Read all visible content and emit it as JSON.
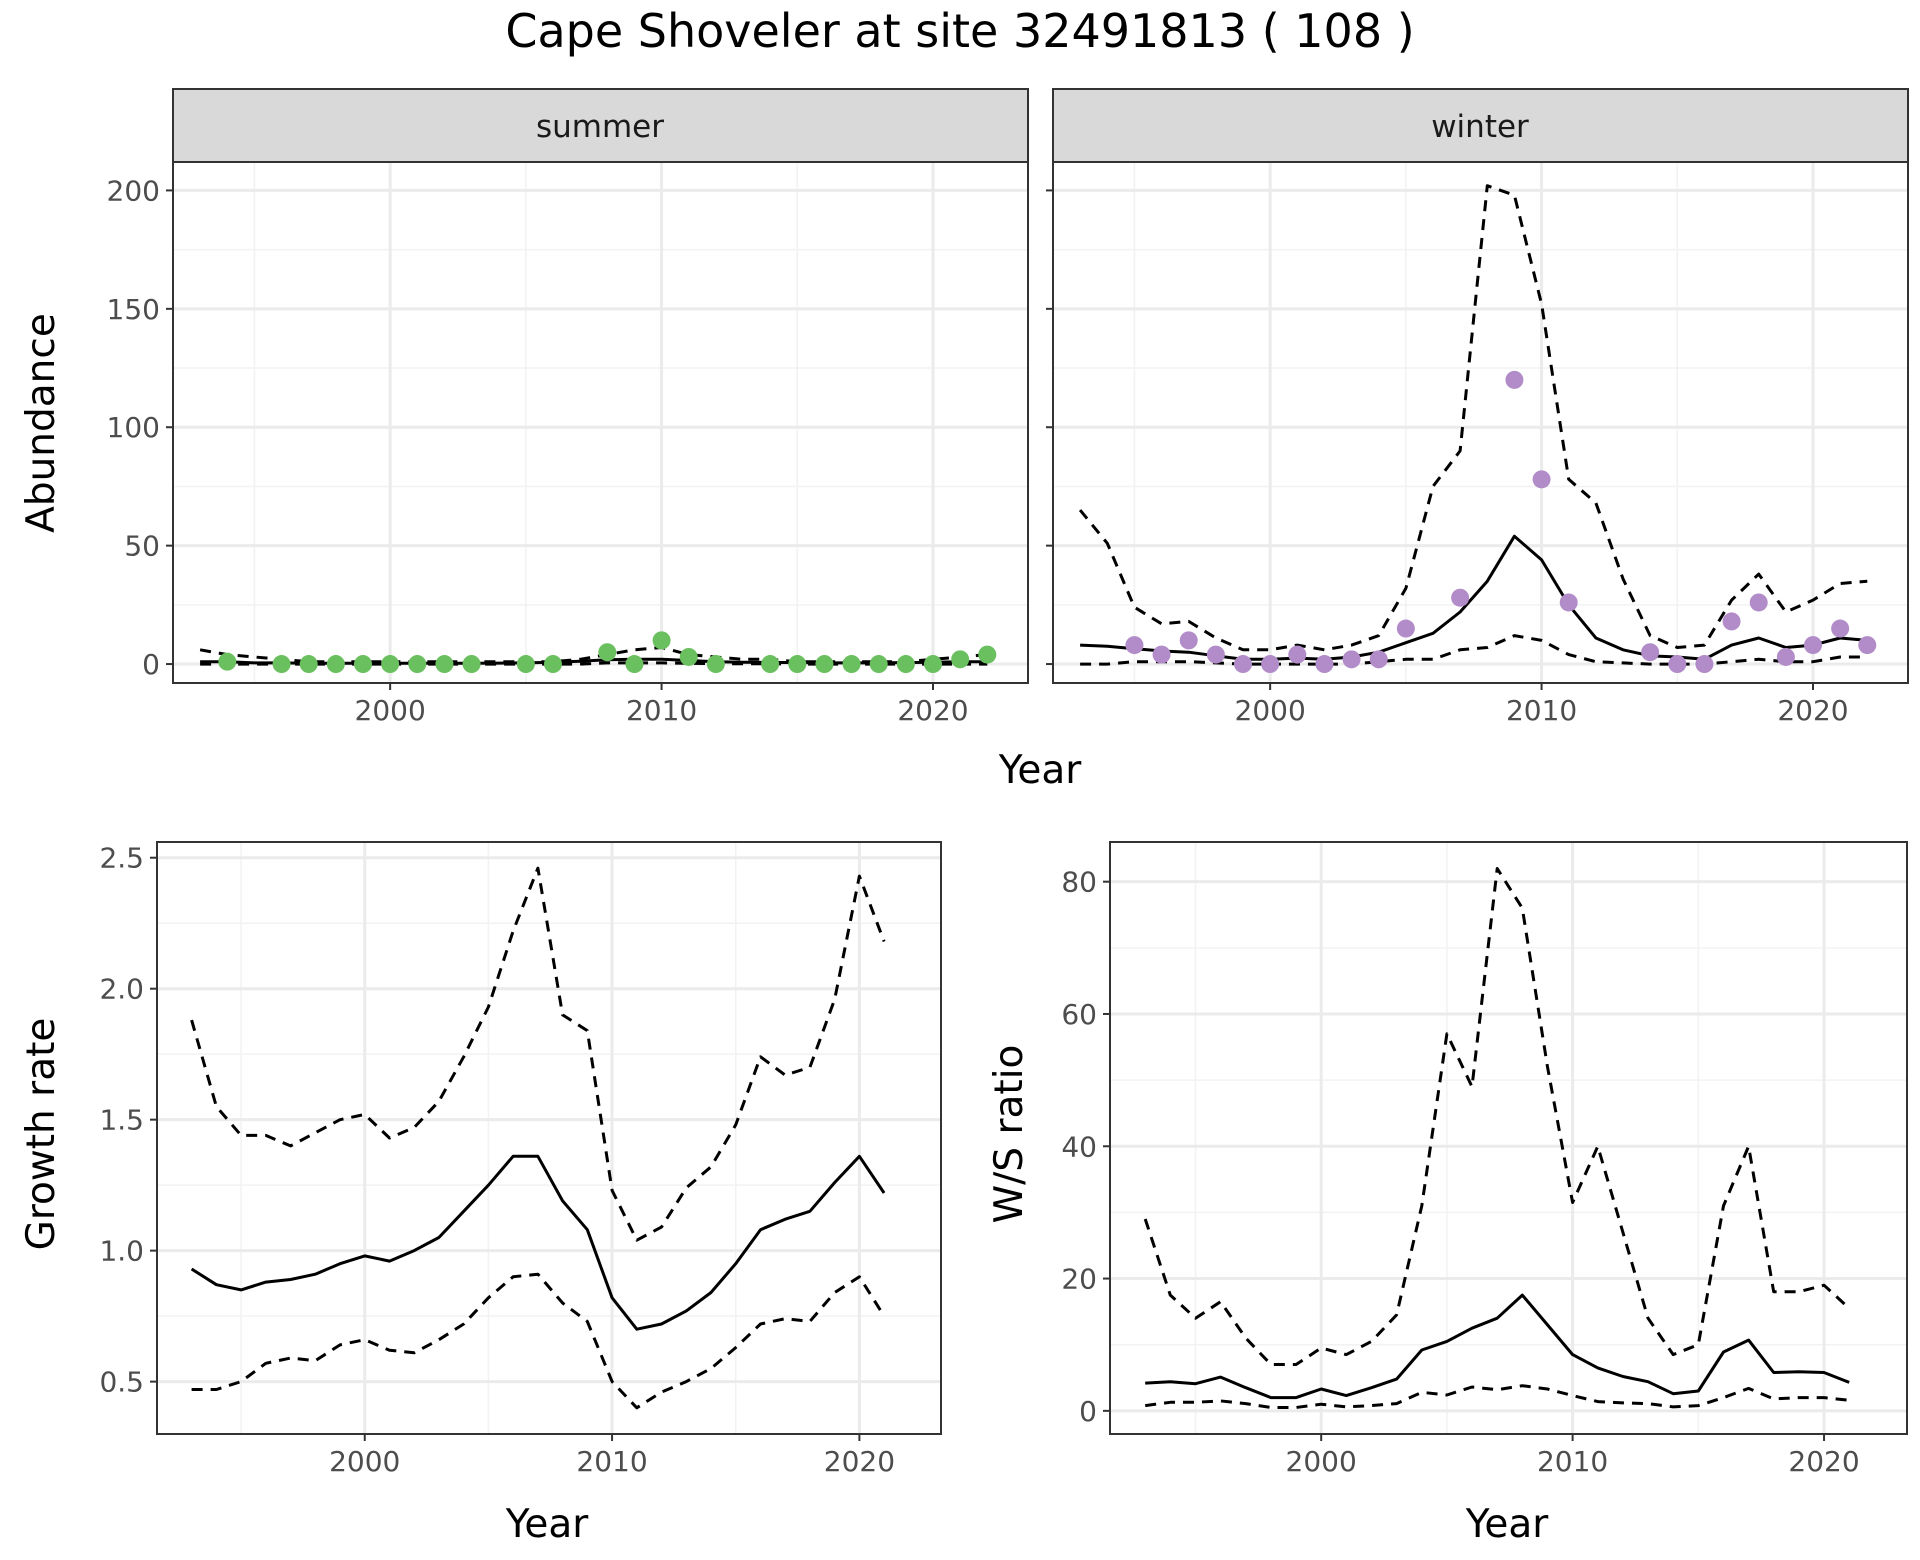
{
  "figure": {
    "title": "Cape Shoveler at site 32491813 ( 108 )"
  },
  "chart_data": [
    {
      "id": "summer",
      "type": "line",
      "panel_label": "summer",
      "xlabel": "Year",
      "ylabel": "Abundance",
      "xlim": [
        1992,
        2023.5
      ],
      "ylim": [
        -8,
        212
      ],
      "xticks": [
        2000,
        2010,
        2020
      ],
      "yticks": [
        0,
        50,
        100,
        150,
        200
      ],
      "grid": true,
      "point_color": "#6abf5e",
      "series": [
        {
          "role": "upper",
          "style": "dashed",
          "x": [
            1993,
            1994,
            1995,
            1996,
            1997,
            1998,
            1999,
            2000,
            2001,
            2002,
            2003,
            2004,
            2005,
            2006,
            2007,
            2008,
            2009,
            2010,
            2011,
            2012,
            2013,
            2014,
            2015,
            2016,
            2017,
            2018,
            2019,
            2020,
            2021,
            2022
          ],
          "y": [
            6,
            4,
            3,
            2,
            1,
            1,
            1,
            1,
            1,
            1,
            1,
            1,
            1,
            1,
            2,
            4,
            6,
            7,
            4,
            3,
            2,
            2,
            1,
            1,
            1,
            1,
            1,
            2,
            3,
            4
          ]
        },
        {
          "role": "fitted",
          "style": "solid",
          "x": [
            1993,
            1994,
            1995,
            1996,
            1997,
            1998,
            1999,
            2000,
            2001,
            2002,
            2003,
            2004,
            2005,
            2006,
            2007,
            2008,
            2009,
            2010,
            2011,
            2012,
            2013,
            2014,
            2015,
            2016,
            2017,
            2018,
            2019,
            2020,
            2021,
            2022
          ],
          "y": [
            1,
            1,
            0.5,
            0.5,
            0.3,
            0.3,
            0.3,
            0.3,
            0.3,
            0.3,
            0.3,
            0.4,
            0.5,
            0.8,
            1.2,
            1.8,
            2,
            2,
            1.5,
            1,
            0.8,
            0.7,
            0.6,
            0.5,
            0.5,
            0.5,
            0.6,
            0.8,
            1,
            1
          ]
        },
        {
          "role": "lower",
          "style": "dashed",
          "x": [
            1993,
            1994,
            1995,
            1996,
            1997,
            1998,
            1999,
            2000,
            2001,
            2002,
            2003,
            2004,
            2005,
            2006,
            2007,
            2008,
            2009,
            2010,
            2011,
            2012,
            2013,
            2014,
            2015,
            2016,
            2017,
            2018,
            2019,
            2020,
            2021,
            2022
          ],
          "y": [
            0,
            0,
            0,
            0,
            0,
            0,
            0,
            0,
            0,
            0,
            0,
            0,
            0,
            0,
            0,
            0.5,
            0.5,
            0.5,
            0.3,
            0.2,
            0.1,
            0.1,
            0,
            0,
            0,
            0,
            0,
            0,
            0,
            0
          ]
        }
      ],
      "points": {
        "x": [
          1994,
          1996,
          1997,
          1998,
          1999,
          2000,
          2001,
          2002,
          2003,
          2005,
          2006,
          2008,
          2009,
          2010,
          2011,
          2012,
          2014,
          2015,
          2016,
          2017,
          2018,
          2019,
          2020,
          2021,
          2022
        ],
        "y": [
          1,
          0,
          0,
          0,
          0,
          0,
          0,
          0,
          0,
          0,
          0,
          5,
          0,
          10,
          3,
          0,
          0,
          0,
          0,
          0,
          0,
          0,
          0,
          2,
          4
        ]
      }
    },
    {
      "id": "winter",
      "type": "line",
      "panel_label": "winter",
      "xlabel": "Year",
      "ylabel": "Abundance",
      "xlim": [
        1992,
        2023.5
      ],
      "ylim": [
        -8,
        212
      ],
      "xticks": [
        2000,
        2010,
        2020
      ],
      "yticks": [
        0,
        50,
        100,
        150,
        200
      ],
      "grid": true,
      "point_color": "#b28cc8",
      "series": [
        {
          "role": "upper",
          "style": "dashed",
          "x": [
            1993,
            1994,
            1995,
            1996,
            1997,
            1998,
            1999,
            2000,
            2001,
            2002,
            2003,
            2004,
            2005,
            2006,
            2007,
            2008,
            2009,
            2010,
            2011,
            2012,
            2013,
            2014,
            2015,
            2016,
            2017,
            2018,
            2019,
            2020,
            2021,
            2022
          ],
          "y": [
            65,
            51,
            24,
            17,
            18,
            11,
            6,
            6,
            8,
            6,
            8,
            12,
            32,
            75,
            90,
            202,
            198,
            152,
            78,
            68,
            36,
            12,
            7,
            8,
            27,
            38,
            22,
            27,
            34,
            35
          ]
        },
        {
          "role": "fitted",
          "style": "solid",
          "x": [
            1993,
            1994,
            1995,
            1996,
            1997,
            1998,
            1999,
            2000,
            2001,
            2002,
            2003,
            2004,
            2005,
            2006,
            2007,
            2008,
            2009,
            2010,
            2011,
            2012,
            2013,
            2014,
            2015,
            2016,
            2017,
            2018,
            2019,
            2020,
            2021,
            2022
          ],
          "y": [
            8,
            7.5,
            6.5,
            5.5,
            5,
            3.5,
            2,
            2,
            2.5,
            2,
            3,
            5,
            9,
            13,
            22,
            35,
            54,
            44,
            25,
            11,
            6,
            3.5,
            3,
            2,
            8,
            11,
            7,
            8,
            11,
            10
          ]
        },
        {
          "role": "lower",
          "style": "dashed",
          "x": [
            1993,
            1994,
            1995,
            1996,
            1997,
            1998,
            1999,
            2000,
            2001,
            2002,
            2003,
            2004,
            2005,
            2006,
            2007,
            2008,
            2009,
            2010,
            2011,
            2012,
            2013,
            2014,
            2015,
            2016,
            2017,
            2018,
            2019,
            2020,
            2021,
            2022
          ],
          "y": [
            0,
            0,
            1,
            1,
            1,
            0.5,
            0,
            0,
            0,
            0,
            0,
            1,
            2,
            2,
            6,
            7,
            12,
            10,
            4,
            1,
            0.5,
            0,
            0,
            0,
            1,
            2,
            1,
            1,
            3,
            3
          ]
        }
      ],
      "points": {
        "x": [
          1995,
          1996,
          1997,
          1998,
          1999,
          2000,
          2001,
          2002,
          2003,
          2004,
          2005,
          2007,
          2009,
          2010,
          2011,
          2014,
          2015,
          2016,
          2017,
          2018,
          2019,
          2020,
          2021,
          2022
        ],
        "y": [
          8,
          4,
          10,
          4,
          0,
          0,
          4,
          0,
          2,
          2,
          15,
          28,
          120,
          78,
          26,
          5,
          0,
          0,
          18,
          26,
          3,
          8,
          15,
          8
        ]
      }
    },
    {
      "id": "growth",
      "type": "line",
      "xlabel": "Year",
      "ylabel": "Growth rate",
      "xlim": [
        1991.6,
        2023.3
      ],
      "ylim": [
        0.3,
        2.56
      ],
      "xticks": [
        2000,
        2010,
        2020
      ],
      "yticks": [
        0.5,
        1.0,
        1.5,
        2.0,
        2.5
      ],
      "ytick_labels": [
        "0.5",
        "1.0",
        "1.5",
        "2.0",
        "2.5"
      ],
      "grid": true,
      "series": [
        {
          "role": "upper",
          "style": "dashed",
          "x": [
            1993,
            1994,
            1995,
            1996,
            1997,
            1998,
            1999,
            2000,
            2001,
            2002,
            2003,
            2004,
            2005,
            2006,
            2007,
            2008,
            2009,
            2010,
            2011,
            2012,
            2013,
            2014,
            2015,
            2016,
            2017,
            2018,
            2019,
            2020,
            2021
          ],
          "y": [
            1.88,
            1.55,
            1.44,
            1.44,
            1.4,
            1.45,
            1.5,
            1.52,
            1.43,
            1.47,
            1.57,
            1.74,
            1.93,
            2.22,
            2.46,
            1.9,
            1.84,
            1.23,
            1.04,
            1.09,
            1.24,
            1.32,
            1.48,
            1.74,
            1.67,
            1.7,
            1.96,
            2.43,
            2.18
          ]
        },
        {
          "role": "fitted",
          "style": "solid",
          "x": [
            1993,
            1994,
            1995,
            1996,
            1997,
            1998,
            1999,
            2000,
            2001,
            2002,
            2003,
            2004,
            2005,
            2006,
            2007,
            2008,
            2009,
            2010,
            2011,
            2012,
            2013,
            2014,
            2015,
            2016,
            2017,
            2018,
            2019,
            2020,
            2021
          ],
          "y": [
            0.93,
            0.87,
            0.85,
            0.88,
            0.89,
            0.91,
            0.95,
            0.98,
            0.96,
            1.0,
            1.05,
            1.15,
            1.25,
            1.36,
            1.36,
            1.19,
            1.08,
            0.82,
            0.7,
            0.72,
            0.77,
            0.84,
            0.95,
            1.08,
            1.12,
            1.15,
            1.26,
            1.36,
            1.22
          ]
        },
        {
          "role": "lower",
          "style": "dashed",
          "x": [
            1993,
            1994,
            1995,
            1996,
            1997,
            1998,
            1999,
            2000,
            2001,
            2002,
            2003,
            2004,
            2005,
            2006,
            2007,
            2008,
            2009,
            2010,
            2011,
            2012,
            2013,
            2014,
            2015,
            2016,
            2017,
            2018,
            2019,
            2020,
            2021
          ],
          "y": [
            0.47,
            0.47,
            0.5,
            0.57,
            0.59,
            0.58,
            0.64,
            0.66,
            0.62,
            0.61,
            0.66,
            0.72,
            0.82,
            0.9,
            0.91,
            0.8,
            0.73,
            0.5,
            0.4,
            0.46,
            0.5,
            0.55,
            0.63,
            0.72,
            0.74,
            0.73,
            0.84,
            0.9,
            0.75
          ]
        }
      ]
    },
    {
      "id": "ratio",
      "type": "line",
      "xlabel": "Year",
      "ylabel": "W/S ratio",
      "xlim": [
        1991.6,
        2023.3
      ],
      "ylim": [
        -3.5,
        86
      ],
      "xticks": [
        2000,
        2010,
        2020
      ],
      "yticks": [
        0,
        20,
        40,
        60,
        80
      ],
      "grid": true,
      "series": [
        {
          "role": "upper",
          "style": "dashed",
          "x": [
            1993,
            1994,
            1995,
            1996,
            1997,
            1998,
            1999,
            2000,
            2001,
            2002,
            2003,
            2004,
            2005,
            2006,
            2007,
            2008,
            2009,
            2010,
            2011,
            2012,
            2013,
            2014,
            2015,
            2016,
            2017,
            2018,
            2019,
            2020,
            2021
          ],
          "y": [
            29,
            17.5,
            14,
            16.5,
            11,
            7,
            7,
            9.5,
            8.5,
            10.5,
            14.5,
            31,
            57,
            49,
            82,
            76,
            52,
            31.5,
            40,
            27,
            14,
            8.5,
            10,
            31,
            40,
            18,
            18,
            19,
            15.5
          ]
        },
        {
          "role": "fitted",
          "style": "solid",
          "x": [
            1993,
            1994,
            1995,
            1996,
            1997,
            1998,
            1999,
            2000,
            2001,
            2002,
            2003,
            2004,
            2005,
            2006,
            2007,
            2008,
            2009,
            2010,
            2011,
            2012,
            2013,
            2014,
            2015,
            2016,
            2017,
            2018,
            2019,
            2020,
            2021
          ],
          "y": [
            4.2,
            4.4,
            4.1,
            5.1,
            3.5,
            2,
            2,
            3.3,
            2.3,
            3.5,
            4.8,
            9.2,
            10.5,
            12.5,
            14,
            17.5,
            13,
            8.5,
            6.5,
            5.2,
            4.4,
            2.6,
            3,
            8.9,
            10.7,
            5.8,
            5.9,
            5.8,
            4.3
          ]
        },
        {
          "role": "lower",
          "style": "dashed",
          "x": [
            1993,
            1994,
            1995,
            1996,
            1997,
            1998,
            1999,
            2000,
            2001,
            2002,
            2003,
            2004,
            2005,
            2006,
            2007,
            2008,
            2009,
            2010,
            2011,
            2012,
            2013,
            2014,
            2015,
            2016,
            2017,
            2018,
            2019,
            2020,
            2021
          ],
          "y": [
            0.8,
            1.3,
            1.3,
            1.5,
            1.1,
            0.5,
            0.5,
            1,
            0.6,
            0.8,
            1.1,
            2.8,
            2.4,
            3.6,
            3.2,
            3.8,
            3.3,
            2.3,
            1.4,
            1.2,
            1.1,
            0.6,
            0.8,
            2,
            3.4,
            1.8,
            2,
            2,
            1.6
          ]
        }
      ]
    }
  ]
}
